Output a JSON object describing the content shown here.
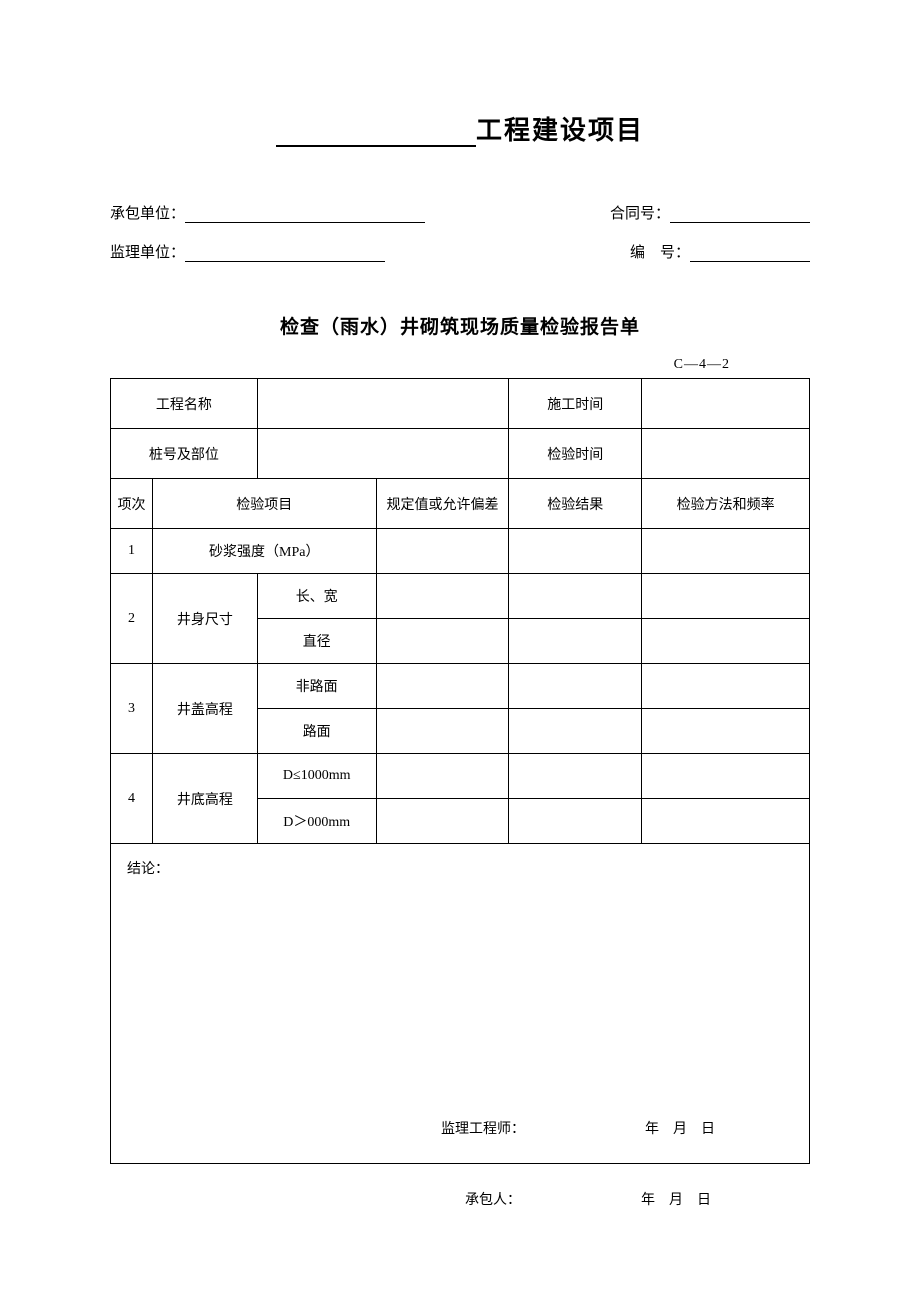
{
  "header": {
    "main_title_suffix": "工程建设项目",
    "contractor_label": "承包单位：",
    "contract_no_label": "合同号：",
    "supervisor_label": "监理单位：",
    "serial_no_label": "编　号："
  },
  "form": {
    "sub_title": "检查（雨水）井砌筑现场质量检验报告单",
    "form_code": "C—4—2",
    "row1": {
      "project_name_label": "工程名称",
      "construction_time_label": "施工时间"
    },
    "row2": {
      "pile_position_label": "桩号及部位",
      "inspection_time_label": "检验时间"
    },
    "header_row": {
      "seq": "项次",
      "inspection_item": "检验项目",
      "spec_value": "规定值或允许偏差",
      "result": "检验结果",
      "method": "检验方法和频率"
    },
    "items": {
      "r1": {
        "seq": "1",
        "name": "砂浆强度（MPa）"
      },
      "r2": {
        "seq": "2",
        "name": "井身尺寸",
        "sub1": "长、宽",
        "sub2": "直径"
      },
      "r3": {
        "seq": "3",
        "name": "井盖高程",
        "sub1": "非路面",
        "sub2": "路面"
      },
      "r4": {
        "seq": "4",
        "name": "井底高程",
        "sub1": "D≤1000mm",
        "sub2": "D＞000mm"
      }
    },
    "conclusion_label": "结论：",
    "engineer_label": "监理工程师：",
    "date_text": "年月日",
    "contractor_label": "承包人：",
    "contractor_date": "年月日"
  },
  "style": {
    "background": "#ffffff",
    "text_color": "#000000",
    "border_color": "#000000",
    "title_fontsize": 26,
    "subtitle_fontsize": 19,
    "body_fontsize": 15,
    "table_fontsize": 14
  }
}
